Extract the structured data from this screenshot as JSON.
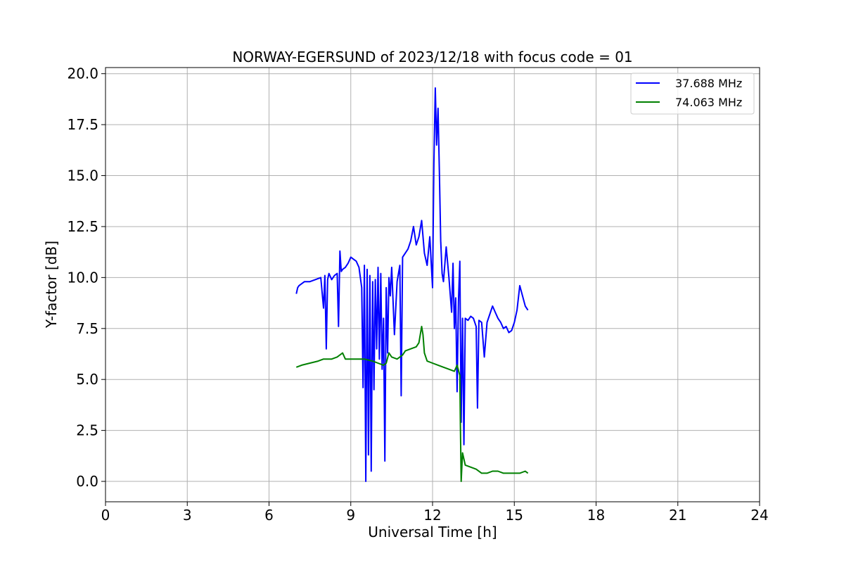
{
  "chart_data": {
    "type": "line",
    "title": "NORWAY-EGERSUND of 2023/12/18 with focus code = 01",
    "xlabel": "Universal Time [h]",
    "ylabel": "Y-factor [dB]",
    "xlim": [
      0,
      24
    ],
    "ylim": [
      -1.0,
      20.3
    ],
    "xticks": [
      0,
      3,
      6,
      9,
      12,
      15,
      18,
      21,
      24
    ],
    "xtick_labels": [
      "0",
      "3",
      "6",
      "9",
      "12",
      "15",
      "18",
      "21",
      "24"
    ],
    "yticks": [
      0.0,
      2.5,
      5.0,
      7.5,
      10.0,
      12.5,
      15.0,
      17.5,
      20.0
    ],
    "ytick_labels": [
      "0.0",
      "2.5",
      "5.0",
      "7.5",
      "10.0",
      "12.5",
      "15.0",
      "17.5",
      "20.0"
    ],
    "grid": true,
    "legend_position": "top-right",
    "series": [
      {
        "name": "37.688 MHz",
        "color": "#0000ff",
        "x": [
          7.0,
          7.05,
          7.1,
          7.2,
          7.3,
          7.5,
          7.7,
          7.9,
          8.0,
          8.05,
          8.1,
          8.15,
          8.2,
          8.3,
          8.4,
          8.5,
          8.55,
          8.6,
          8.65,
          8.7,
          8.8,
          8.9,
          9.0,
          9.1,
          9.2,
          9.3,
          9.4,
          9.45,
          9.5,
          9.55,
          9.6,
          9.65,
          9.7,
          9.75,
          9.8,
          9.85,
          9.9,
          9.95,
          10.0,
          10.05,
          10.1,
          10.15,
          10.2,
          10.25,
          10.3,
          10.35,
          10.4,
          10.45,
          10.5,
          10.6,
          10.7,
          10.8,
          10.85,
          10.9,
          11.0,
          11.1,
          11.2,
          11.3,
          11.4,
          11.5,
          11.6,
          11.7,
          11.8,
          11.9,
          12.0,
          12.05,
          12.1,
          12.15,
          12.2,
          12.25,
          12.3,
          12.35,
          12.4,
          12.5,
          12.6,
          12.7,
          12.75,
          12.8,
          12.85,
          12.9,
          12.95,
          13.0,
          13.05,
          13.1,
          13.15,
          13.2,
          13.3,
          13.4,
          13.5,
          13.6,
          13.65,
          13.7,
          13.8,
          13.9,
          14.0,
          14.1,
          14.2,
          14.3,
          14.4,
          14.5,
          14.6,
          14.7,
          14.8,
          14.9,
          15.0,
          15.1,
          15.2,
          15.3,
          15.4,
          15.5
        ],
        "values": [
          9.2,
          9.5,
          9.6,
          9.7,
          9.8,
          9.8,
          9.9,
          10.0,
          8.5,
          10.1,
          6.5,
          9.9,
          10.2,
          9.9,
          10.1,
          10.2,
          7.6,
          11.3,
          10.3,
          10.4,
          10.5,
          10.7,
          11.0,
          10.9,
          10.8,
          10.5,
          9.5,
          4.6,
          10.6,
          0.0,
          10.4,
          1.3,
          10.1,
          0.5,
          9.8,
          4.5,
          9.9,
          6.5,
          10.5,
          6.0,
          10.2,
          5.5,
          8.0,
          1.0,
          9.5,
          6.3,
          10.0,
          9.1,
          10.5,
          7.2,
          9.8,
          10.6,
          4.2,
          11.0,
          11.2,
          11.4,
          11.8,
          12.5,
          11.6,
          12.0,
          12.8,
          11.2,
          10.6,
          12.0,
          9.5,
          15.6,
          19.3,
          16.5,
          18.3,
          15.2,
          11.8,
          10.2,
          9.8,
          11.5,
          10.0,
          8.3,
          10.7,
          7.5,
          9.0,
          4.4,
          8.8,
          10.8,
          2.9,
          8.0,
          1.8,
          8.0,
          7.9,
          8.1,
          8.0,
          7.6,
          3.6,
          7.9,
          7.8,
          6.1,
          7.8,
          8.2,
          8.6,
          8.3,
          8.0,
          7.8,
          7.5,
          7.6,
          7.3,
          7.4,
          7.8,
          8.4,
          9.6,
          9.1,
          8.6,
          8.4
        ]
      },
      {
        "name": "74.063 MHz",
        "color": "#008000",
        "x": [
          7.0,
          7.2,
          7.5,
          7.8,
          8.0,
          8.3,
          8.5,
          8.7,
          8.8,
          9.0,
          9.3,
          9.5,
          9.8,
          10.0,
          10.2,
          10.3,
          10.4,
          10.5,
          10.7,
          10.9,
          11.0,
          11.2,
          11.4,
          11.5,
          11.6,
          11.65,
          11.7,
          11.8,
          12.0,
          12.2,
          12.4,
          12.6,
          12.8,
          12.9,
          13.0,
          13.02,
          13.05,
          13.1,
          13.2,
          13.4,
          13.6,
          13.8,
          14.0,
          14.2,
          14.4,
          14.6,
          14.8,
          15.0,
          15.2,
          15.4,
          15.5
        ],
        "values": [
          5.6,
          5.7,
          5.8,
          5.9,
          6.0,
          6.0,
          6.1,
          6.3,
          6.0,
          6.0,
          6.0,
          6.0,
          5.9,
          5.8,
          5.7,
          5.8,
          6.3,
          6.1,
          6.0,
          6.2,
          6.4,
          6.5,
          6.6,
          6.8,
          7.6,
          7.2,
          6.3,
          5.9,
          5.8,
          5.7,
          5.6,
          5.5,
          5.4,
          5.7,
          5.2,
          3.0,
          0.0,
          1.4,
          0.8,
          0.7,
          0.6,
          0.4,
          0.4,
          0.5,
          0.5,
          0.4,
          0.4,
          0.4,
          0.4,
          0.5,
          0.4
        ]
      }
    ]
  }
}
